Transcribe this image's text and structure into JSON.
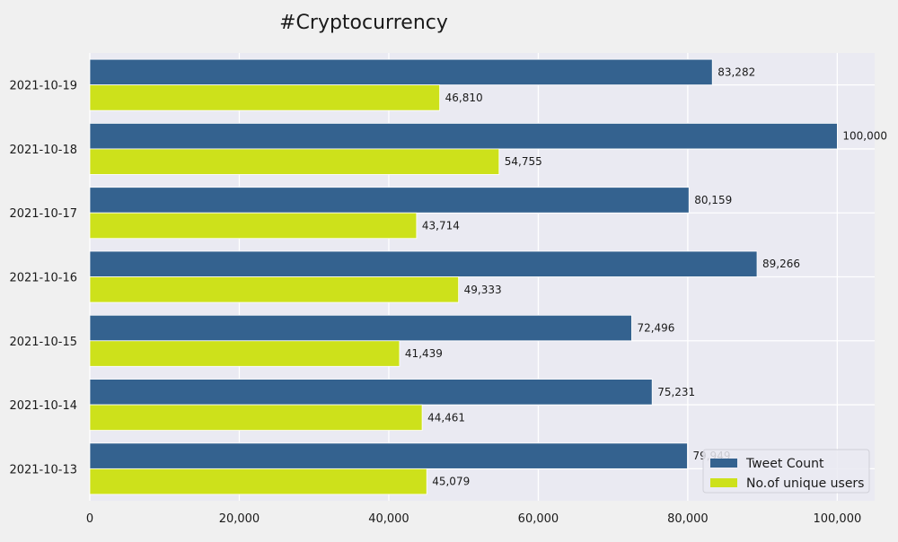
{
  "chart_data": {
    "type": "bar",
    "orientation": "horizontal",
    "title": "#Cryptocurrency",
    "xlabel": "",
    "ylabel": "",
    "categories": [
      "2021-10-13",
      "2021-10-14",
      "2021-10-15",
      "2021-10-16",
      "2021-10-17",
      "2021-10-18",
      "2021-10-19"
    ],
    "series": [
      {
        "name": "Tweet Count",
        "color": "#34628f",
        "values": [
          79949,
          75231,
          72496,
          89266,
          80159,
          100000,
          83282
        ]
      },
      {
        "name": "No.of unique users",
        "color": "#cde11b",
        "values": [
          45079,
          44461,
          41439,
          49333,
          43714,
          54755,
          46810
        ]
      }
    ],
    "xlim": [
      0,
      105000
    ],
    "xticks": [
      0,
      20000,
      40000,
      60000,
      80000,
      100000
    ],
    "xtick_labels": [
      "0",
      "20,000",
      "40,000",
      "60,000",
      "80,000",
      "100,000"
    ],
    "grid": true,
    "legend_position": "bottom-right",
    "colors": {
      "background": "#f0f0f0",
      "plot_background": "#eaeaf2",
      "grid": "#ffffff"
    }
  }
}
